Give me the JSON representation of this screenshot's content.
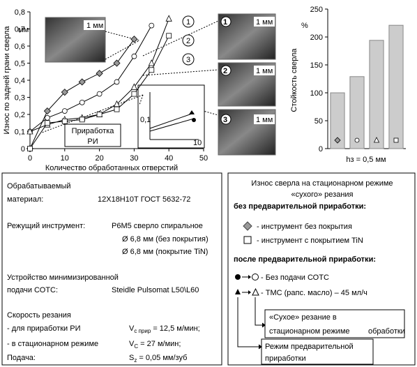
{
  "chart_data": [
    {
      "type": "line",
      "x_label": "Количество обработанных отверстий",
      "y_label": "Износ по задней грани сверла",
      "y_unit": "мм",
      "xlim": [
        0,
        50
      ],
      "xticks": [
        0,
        10,
        20,
        30,
        40,
        50
      ],
      "ylim": [
        0,
        0.8
      ],
      "yticks": [
        0,
        {
          "value": 0.1,
          "label": "0,1"
        },
        {
          "value": 0.2,
          "label": "0,2"
        },
        {
          "value": 0.3,
          "label": "0,3"
        },
        {
          "value": 0.4,
          "label": "0,4"
        },
        {
          "value": 0.5,
          "label": "0,5"
        },
        {
          "value": 0.6,
          "label": "0,6"
        },
        {
          "value": 0.7,
          "label": "0,7"
        },
        {
          "value": 0.8,
          "label": "0,8"
        }
      ],
      "series": [
        {
          "marker": "diamond",
          "color": "#999999",
          "x": [
            0,
            5,
            10,
            15,
            20,
            25,
            30
          ],
          "values": [
            0,
            0.22,
            0.33,
            0.39,
            0.44,
            0.5,
            0.64
          ]
        },
        {
          "name": "1",
          "marker": "circle",
          "color": "#ffffff",
          "x": [
            0,
            5,
            10,
            15,
            20,
            25,
            30,
            35
          ],
          "values": [
            0.1,
            0.18,
            0.22,
            0.27,
            0.32,
            0.39,
            0.54,
            0.72
          ]
        },
        {
          "name": "2",
          "marker": "triangle",
          "color": "#ffffff",
          "x": [
            0,
            5,
            10,
            15,
            20,
            25,
            30,
            35,
            40
          ],
          "values": [
            0.1,
            0.14,
            0.17,
            0.18,
            0.2,
            0.26,
            0.36,
            0.5,
            0.76
          ]
        },
        {
          "name": "3",
          "marker": "square",
          "color": "#ffffff",
          "x": [
            0,
            5,
            10,
            15,
            20,
            25,
            30,
            35,
            40
          ],
          "values": [
            0,
            0.15,
            0.16,
            0.17,
            0.2,
            0.23,
            0.32,
            0.46,
            0.66
          ]
        }
      ],
      "annotation": [
        "Приработка",
        "РИ"
      ],
      "inset_labels": [
        "0,1",
        "10"
      ]
    },
    {
      "type": "bar",
      "y_label": "Стойкость сверла",
      "y_unit": "%",
      "x_label": "hз = 0,5 мм",
      "categories": [
        null,
        null,
        null,
        null
      ],
      "markers": [
        "diamond",
        "circle",
        "triangle",
        "square"
      ],
      "values": [
        100,
        129,
        194,
        221
      ],
      "color": "#cccccc",
      "ylim": [
        0,
        250
      ],
      "yticks": [
        0,
        50,
        100,
        150,
        200,
        250
      ]
    }
  ],
  "photos": {
    "scale": "1 мм",
    "labels": [
      "1",
      "2",
      "3"
    ]
  },
  "conditions": {
    "material": [
      "Обрабатываемый",
      "материал:",
      "12Х18Н10Т ГОСТ 5632-72"
    ],
    "tool": [
      "Режущий инструмент:",
      "Р6М5 сверло спиральное",
      "Ø 6,8 мм (без покрытия)",
      "Ø 6,8 мм (покрытие TiN)"
    ],
    "device": [
      "Устройство минимизированной",
      "подачи СОТС:",
      "Steidle Pulsomat L50\\L60"
    ],
    "speed": [
      "Скорость резания",
      "- для приработки РИ",
      "- в стационарном режиме"
    ],
    "speed_break_in": [
      "V",
      "c прир",
      " = 12,5 м/мин;"
    ],
    "speed_steady": [
      "V",
      "C",
      " = 27 м/мин;"
    ],
    "feed": [
      "Подача:",
      "S",
      "z",
      " = 0,05 мм/зуб"
    ]
  },
  "legend_panel": {
    "title": [
      "Износ сверла на стационарном режиме",
      "«сухого» резания"
    ],
    "without": "без предварительной приработки:",
    "without_items": [
      "- инструмент без покрытия",
      "- инструмент с покрытием TiN"
    ],
    "with": "после предварительной приработки:",
    "with_items": [
      "- Без подачи СОТС",
      "- ТМС (рапс. масло)  –  45 мл/ч"
    ],
    "dry": [
      "«Сухое» резание в",
      "стационарном режиме",
      "обработки"
    ],
    "mode": [
      "Режим предварительной",
      "приработки"
    ]
  }
}
